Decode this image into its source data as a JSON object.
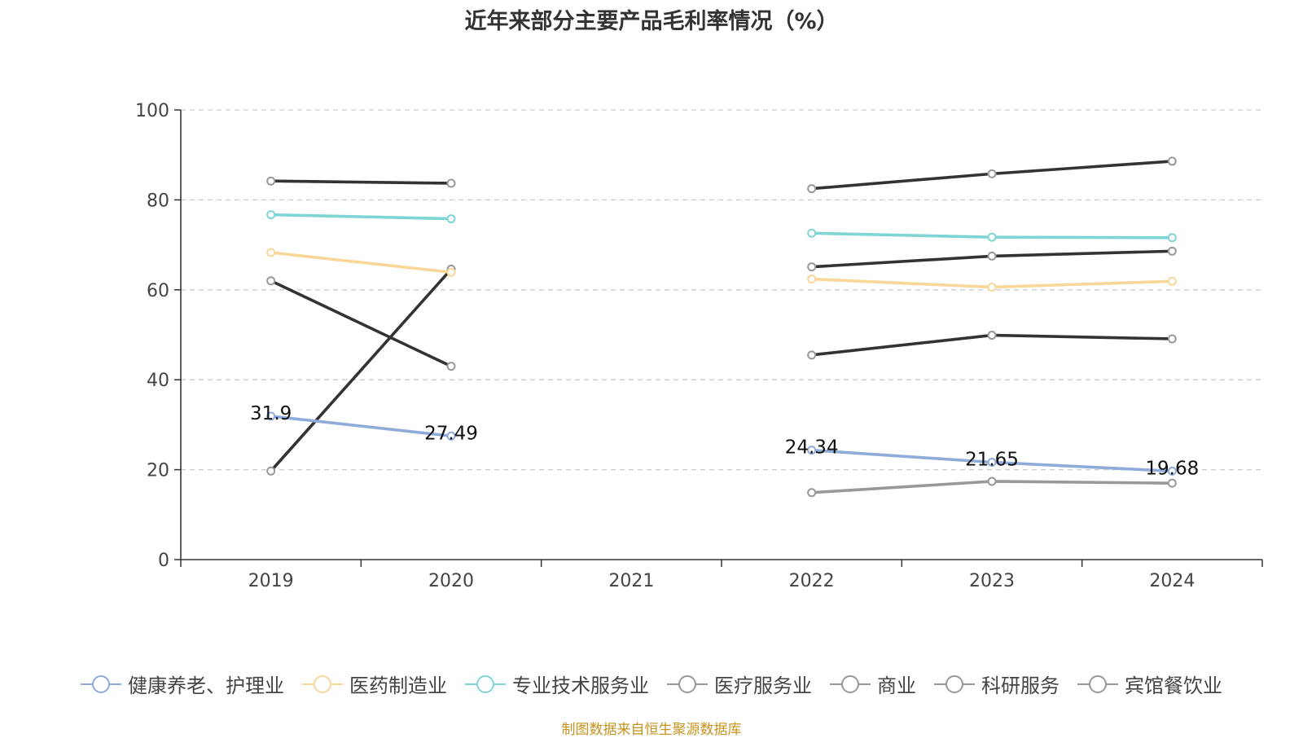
{
  "chart_data": {
    "type": "line",
    "title": "近年来部分主要产品毛利率情况（%）",
    "categories": [
      "2019",
      "2020",
      "2021",
      "2022",
      "2023",
      "2024"
    ],
    "ylim": [
      0,
      100
    ],
    "yticks": [
      "0",
      "20",
      "40",
      "60",
      "80",
      "100"
    ],
    "grid": true,
    "legend_position": "bottom",
    "series": [
      {
        "name": "健康养老、护理业",
        "color": "#8fabd9",
        "values": [
          31.9,
          27.49,
          null,
          24.34,
          21.65,
          19.68
        ],
        "labels": [
          "31.9",
          "27.49",
          null,
          "24.34",
          "21.65",
          "19.68"
        ]
      },
      {
        "name": "医药制造业",
        "color": "#f9d798",
        "values": [
          68.3,
          63.9,
          null,
          62.4,
          60.6,
          61.9
        ]
      },
      {
        "name": "专业技术服务业",
        "color": "#7fd4d4",
        "values": [
          76.7,
          75.8,
          null,
          72.6,
          71.7,
          71.6
        ]
      },
      {
        "name": "医疗服务业",
        "color": "#333333",
        "markerColor": "#999999",
        "values": [
          84.2,
          83.7,
          null,
          82.5,
          85.8,
          88.6
        ]
      },
      {
        "name": "商业",
        "color": "#333333",
        "markerColor": "#999999",
        "values": [
          19.7,
          64.6,
          null,
          65.1,
          67.5,
          68.6
        ]
      },
      {
        "name": "科研服务",
        "color": "#333333",
        "markerColor": "#999999",
        "values": [
          62.0,
          43.0,
          null,
          45.5,
          49.9,
          49.1
        ]
      },
      {
        "name": "宾馆餐饮业",
        "color": "#999999",
        "markerColor": "#999999",
        "values": [
          null,
          null,
          null,
          14.9,
          17.4,
          17.0
        ]
      }
    ]
  },
  "source_note": "制图数据来自恒生聚源数据库"
}
